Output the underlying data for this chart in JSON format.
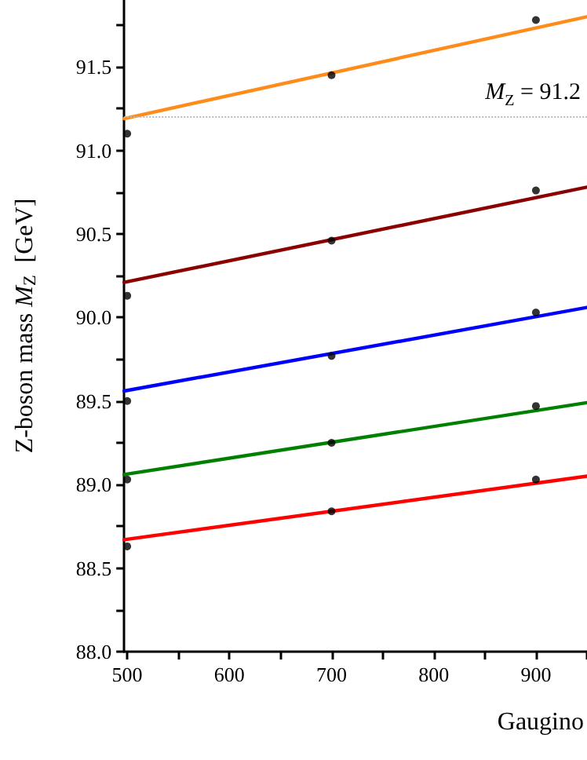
{
  "chart_data": {
    "type": "line",
    "xlabel": "Gaugino",
    "ylabel": "Z-boson mass M$_{Z}$  [GeV]",
    "xlim": [
      497,
      950
    ],
    "ylim": [
      88,
      91.9
    ],
    "xticks": [
      500,
      {
        "value": 550,
        "label": null
      },
      600,
      {
        "value": 650,
        "label": null
      },
      700,
      {
        "value": 750,
        "label": null
      },
      800,
      {
        "value": 850,
        "label": null
      },
      900,
      {
        "value": 950,
        "label": null
      }
    ],
    "yticks": [
      {
        "value": 88,
        "label": "88.0"
      },
      {
        "value": 88.25,
        "label": null
      },
      {
        "value": 88.5,
        "label": "88.5"
      },
      {
        "value": 88.75,
        "label": null
      },
      {
        "value": 89,
        "label": "89.0"
      },
      {
        "value": 89.25,
        "label": null
      },
      {
        "value": 89.5,
        "label": "89.5"
      },
      {
        "value": 89.75,
        "label": null
      },
      {
        "value": 90,
        "label": "90.0"
      },
      {
        "value": 90.25,
        "label": null
      },
      {
        "value": 90.5,
        "label": "90.5"
      },
      {
        "value": 90.75,
        "label": null
      },
      {
        "value": 91,
        "label": "91.0"
      },
      {
        "value": 91.25,
        "label": null
      },
      {
        "value": 91.5,
        "label": "91.5"
      },
      {
        "value": 91.75,
        "label": null
      }
    ],
    "grid": false,
    "line_style": "solid",
    "ref_lines": [
      {
        "axis": "y",
        "value": 91.2,
        "label": "M$_{Z}$ = 91.2",
        "color": "#bbbbbb",
        "line_style": "dotted"
      }
    ],
    "series": [
      {
        "color": "#ff8c1a",
        "x": [
          497,
          950
        ],
        "values": [
          91.19,
          91.8
        ],
        "marker": "none"
      },
      {
        "color": "#8b0000",
        "x": [
          497,
          950
        ],
        "values": [
          90.21,
          90.78
        ],
        "marker": "none"
      },
      {
        "color": "#0000ff",
        "x": [
          497,
          950
        ],
        "values": [
          89.56,
          90.06
        ],
        "marker": "none"
      },
      {
        "color": "#008000",
        "x": [
          497,
          950
        ],
        "values": [
          89.06,
          89.49
        ],
        "marker": "none"
      },
      {
        "color": "#ff0000",
        "x": [
          497,
          950
        ],
        "values": [
          88.67,
          89.05
        ],
        "marker": "none"
      },
      {
        "type": "scatter",
        "color": "#000000",
        "x": [
          500,
          700,
          900
        ],
        "values": [
          91.1,
          91.45,
          91.78
        ],
        "marker": "circle"
      },
      {
        "type": "scatter",
        "color": "#000000",
        "x": [
          500,
          700,
          900
        ],
        "values": [
          90.13,
          90.46,
          90.76
        ],
        "marker": "circle"
      },
      {
        "type": "scatter",
        "color": "#000000",
        "x": [
          500,
          700,
          900
        ],
        "values": [
          89.5,
          89.77,
          90.03
        ],
        "marker": "circle"
      },
      {
        "type": "scatter",
        "color": "#000000",
        "x": [
          500,
          700,
          900
        ],
        "values": [
          89.03,
          89.25,
          89.47
        ],
        "marker": "circle"
      },
      {
        "type": "scatter",
        "color": "#000000",
        "x": [
          500,
          700,
          900
        ],
        "values": [
          88.63,
          88.84,
          89.03
        ],
        "marker": "circle"
      }
    ]
  }
}
